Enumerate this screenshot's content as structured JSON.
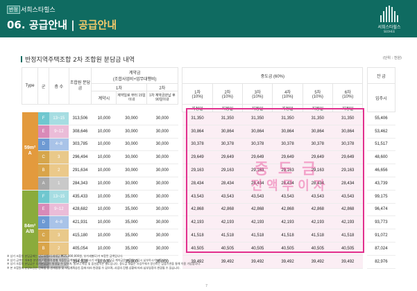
{
  "header": {
    "badge": "반정",
    "brand": "서희스타힐스",
    "title": "06. 공급안내",
    "separator": "|",
    "subtitle": "공급안내",
    "logo_line1": "서희스타힐스",
    "logo_line2": "SEOHEE"
  },
  "section_title": "반정지역주택조합 2차 조합원 분담금 내역",
  "unit": "(단위 : 천원)",
  "table": {
    "headers": {
      "type": "Type",
      "gun": "군",
      "floor": "층 수",
      "total": "조합원 분담금",
      "deposit": "계약금",
      "deposit_sub": "(조합사업비+업무대행비)",
      "deposit_1": "1차",
      "deposit_2": "2차",
      "d1a": "계약시",
      "d1b": "계약일로 부터 15일 이내",
      "d2": "1차 계약금완납 후 90일이내",
      "middle": "중도금 (60%)",
      "m1": "1차",
      "m2": "2차",
      "m3": "3차",
      "m4": "4차",
      "m5": "5차",
      "m6": "6차",
      "pct": "(10%)",
      "designated": "지정일",
      "balance": "잔 금",
      "balance_sub": "입주시"
    },
    "groups": [
      {
        "type_label": "59m²",
        "type_sub": "A",
        "color": "#e39a3d",
        "rows": [
          {
            "gun": "F",
            "floors": "13~15",
            "total": "313,506",
            "d1a": "10,000",
            "d1b": "30,000",
            "d2": "30,000",
            "m": [
              "31,350",
              "31,350",
              "31,350",
              "31,350",
              "31,350",
              "31,350"
            ],
            "balance": "55,406"
          },
          {
            "gun": "E",
            "floors": "9~12",
            "total": "308,646",
            "d1a": "10,000",
            "d1b": "30,000",
            "d2": "30,000",
            "m": [
              "30,864",
              "30,864",
              "30,864",
              "30,864",
              "30,864",
              "30,864"
            ],
            "balance": "53,462"
          },
          {
            "gun": "D",
            "floors": "4~8",
            "total": "303,785",
            "d1a": "10,000",
            "d1b": "30,000",
            "d2": "30,000",
            "m": [
              "30,378",
              "30,378",
              "30,378",
              "30,378",
              "30,378",
              "30,378"
            ],
            "balance": "51,517"
          },
          {
            "gun": "C",
            "floors": "3",
            "total": "296,494",
            "d1a": "10,000",
            "d1b": "30,000",
            "d2": "30,000",
            "m": [
              "29,649",
              "29,649",
              "29,649",
              "29,649",
              "29,649",
              "29,649"
            ],
            "balance": "48,600"
          },
          {
            "gun": "B",
            "floors": "2",
            "total": "291,634",
            "d1a": "10,000",
            "d1b": "30,000",
            "d2": "30,000",
            "m": [
              "29,163",
              "29,163",
              "29,163",
              "29,163",
              "29,163",
              "29,163"
            ],
            "balance": "46,656"
          },
          {
            "gun": "A",
            "floors": "1",
            "total": "284,343",
            "d1a": "10,000",
            "d1b": "30,000",
            "d2": "30,000",
            "m": [
              "28,434",
              "28,434",
              "28,434",
              "28,434",
              "28,434",
              "28,434"
            ],
            "balance": "43,739"
          }
        ]
      },
      {
        "type_label": "84m²",
        "type_sub": "A/B",
        "color": "#8aab3c",
        "rows": [
          {
            "gun": "F",
            "floors": "13~15",
            "total": "435,433",
            "d1a": "10,000",
            "d1b": "35,000",
            "d2": "30,000",
            "m": [
              "43,543",
              "43,543",
              "43,543",
              "43,543",
              "43,543",
              "43,543"
            ],
            "balance": "99,175"
          },
          {
            "gun": "E",
            "floors": "9~12",
            "total": "428,682",
            "d1a": "10,000",
            "d1b": "35,000",
            "d2": "30,000",
            "m": [
              "42,868",
              "42,868",
              "42,868",
              "42,868",
              "42,868",
              "42,868"
            ],
            "balance": "96,474"
          },
          {
            "gun": "D",
            "floors": "4~8",
            "total": "421,931",
            "d1a": "10,000",
            "d1b": "35,000",
            "d2": "30,000",
            "m": [
              "42,193",
              "42,193",
              "42,193",
              "42,193",
              "42,193",
              "42,193"
            ],
            "balance": "93,773"
          },
          {
            "gun": "C",
            "floors": "3",
            "total": "415,180",
            "d1a": "10,000",
            "d1b": "35,000",
            "d2": "30,000",
            "m": [
              "41,518",
              "41,518",
              "41,518",
              "41,518",
              "41,518",
              "41,518"
            ],
            "balance": "91,072"
          },
          {
            "gun": "B",
            "floors": "2",
            "total": "405,054",
            "d1a": "10,000",
            "d1b": "35,000",
            "d2": "30,000",
            "m": [
              "40,505",
              "40,505",
              "40,505",
              "40,505",
              "40,505",
              "40,505"
            ],
            "balance": "87,024"
          },
          {
            "gun": "A",
            "floors": "1",
            "total": "394,928",
            "d1a": "10,000",
            "d1b": "35,000",
            "d2": "30,000",
            "m": [
              "39,492",
              "39,492",
              "39,492",
              "39,492",
              "39,492",
              "39,492"
            ],
            "balance": "82,976"
          }
        ]
      }
    ],
    "gun_colors": {
      "F": "#6fc7cf",
      "E": "#d98ab8",
      "D": "#6e9ad3",
      "C": "#d6a64c",
      "B": "#d9a449",
      "A": "#a7a7a7"
    },
    "floor_colors": {
      "F": "#a6dde2",
      "E": "#ebbcd8",
      "D": "#a9c3e8",
      "C": "#e9c98a",
      "B": "#ebc98a",
      "A": "#c9c9c9"
    }
  },
  "watermark": {
    "line1": "중도금",
    "line2": "전액무이자"
  },
  "notes": [
    "※ 상기 조합원 분담금에는 업무대행비(세대당 ₩25,000,000원, 부가세별도)가 포함된 금액입니다.",
    "※ 상기 금액은 대표층 분양가 기준이며 층별 차등된 금액이므로 확인하시기 바랍니다. 분담금 계약금은 조합원 가입시 납부하시기 바랍니다.",
    "※ 상기 조합원 분담금은 추가분담금이 발생할 수 있으며, 발코니 확장 및 옵션품목은 별도입니다. 중도금 대출은 사업주체가 알선하는 금융기관을 통해 이용 가능합니다.",
    "※ 본 조합원의 분양조건은 건축법 등 관계법령 및 사업계획승인 등에 따라 변경될 수 있으며, 사업의 진행 상황에 따라 납부일정이 변경될 수 있습니다."
  ],
  "page_number": "7"
}
